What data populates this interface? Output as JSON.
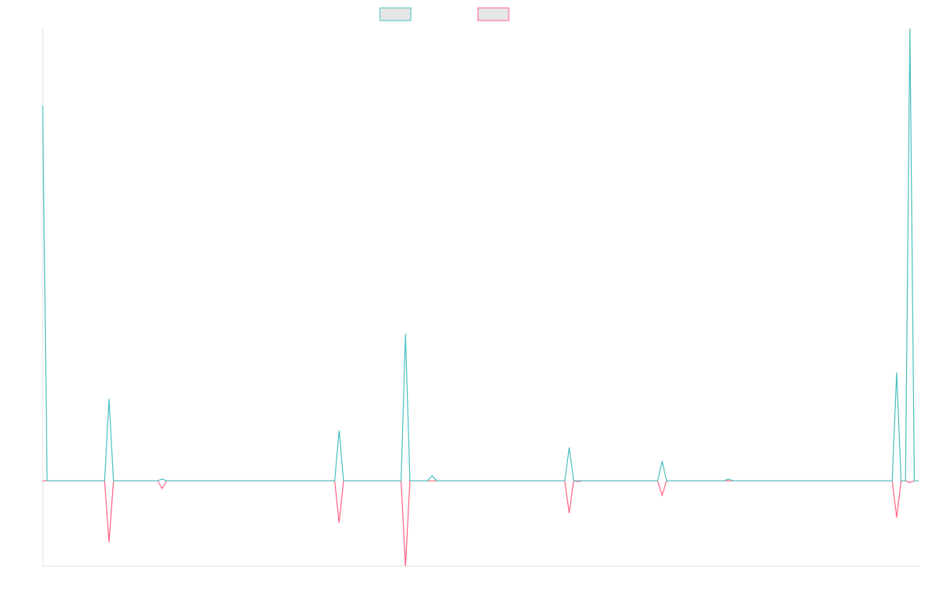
{
  "chart_data": {
    "type": "line",
    "title": "",
    "xlabel": "",
    "ylabel": "",
    "grid": false,
    "legend_placement": "top-center",
    "ylim": [
      -100,
      530
    ],
    "x": [
      0,
      0.5,
      7,
      7.5,
      8,
      13,
      13.5,
      14,
      33,
      33.5,
      34,
      40.5,
      41,
      41.5,
      43.5,
      44,
      44.5,
      59,
      59.5,
      60,
      60.5,
      61,
      61.5,
      69.5,
      70,
      70.5,
      77,
      77.5,
      78,
      96,
      96.5,
      97,
      97.5,
      98,
      98.5,
      99
    ],
    "series": [
      {
        "name": "",
        "color": "#4bc0c0",
        "fill": "#e6e6e6",
        "values": [
          440,
          0,
          0,
          96,
          0,
          0,
          2,
          0,
          0,
          59,
          0,
          0,
          172,
          0,
          0,
          6,
          0,
          0,
          39,
          0,
          0,
          0,
          0,
          0,
          23,
          0,
          0,
          2,
          0,
          0,
          127,
          0,
          0,
          530,
          0,
          0
        ]
      },
      {
        "name": "",
        "color": "#ff6384",
        "fill": "#e6e6e6",
        "values": [
          0,
          0,
          0,
          -72,
          0,
          0,
          -9,
          0,
          0,
          -49,
          0,
          0,
          -100,
          0,
          0,
          0,
          0,
          0,
          -38,
          0,
          -1,
          0,
          0,
          0,
          -17,
          0,
          0,
          0,
          0,
          0,
          -43,
          0,
          0,
          -2,
          0,
          0
        ]
      }
    ]
  }
}
